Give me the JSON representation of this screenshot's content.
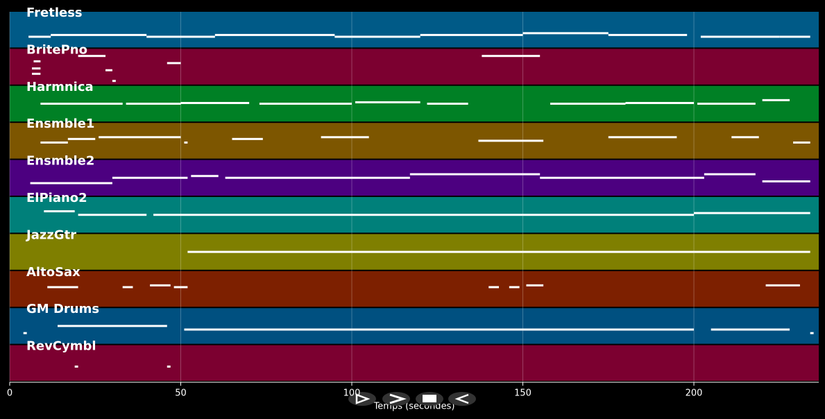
{
  "chart_data": {
    "type": "pianoroll",
    "xlabel": "Temps (secondes)",
    "xlim": [
      0,
      236.5
    ],
    "xticks": [
      0,
      50,
      100,
      150,
      200
    ],
    "grid": true,
    "series": [
      {
        "name": "Fretless",
        "color": "#005a87",
        "notes": [
          [
            5.5,
            12,
            30
          ],
          [
            12,
            40,
            35
          ],
          [
            40,
            60,
            30
          ],
          [
            60,
            95,
            35
          ],
          [
            95,
            120,
            30
          ],
          [
            120,
            150,
            35
          ],
          [
            150,
            175,
            40
          ],
          [
            175,
            198,
            35
          ],
          [
            202,
            225,
            30
          ],
          [
            225,
            234,
            30
          ]
        ]
      },
      {
        "name": "BritePno",
        "color": "#7c0030",
        "notes": [
          [
            6.5,
            9,
            30
          ],
          [
            6.5,
            9,
            45
          ],
          [
            7,
            9,
            65
          ],
          [
            20,
            28,
            80
          ],
          [
            28,
            30,
            40
          ],
          [
            30,
            31,
            10
          ],
          [
            46,
            50,
            60
          ],
          [
            138,
            155,
            80
          ]
        ]
      },
      {
        "name": "Harmnica",
        "color": "#008025",
        "notes": [
          [
            9,
            33,
            50
          ],
          [
            34,
            50,
            50
          ],
          [
            50,
            70,
            52
          ],
          [
            73,
            100,
            50
          ],
          [
            101,
            120,
            54
          ],
          [
            122,
            134,
            50
          ],
          [
            158,
            180,
            50
          ],
          [
            180,
            200,
            52
          ],
          [
            201,
            218,
            50
          ],
          [
            220,
            228,
            60
          ]
        ]
      },
      {
        "name": "Ensmble1",
        "color": "#7d5600",
        "notes": [
          [
            9,
            17,
            45
          ],
          [
            17,
            25,
            55
          ],
          [
            26,
            50,
            60
          ],
          [
            51,
            52,
            45
          ],
          [
            65,
            74,
            55
          ],
          [
            91,
            105,
            60
          ],
          [
            137,
            156,
            50
          ],
          [
            175,
            195,
            60
          ],
          [
            211,
            219,
            60
          ],
          [
            229,
            234,
            45
          ]
        ]
      },
      {
        "name": "Ensmble2",
        "color": "#4c0080",
        "notes": [
          [
            6,
            30,
            35
          ],
          [
            30,
            52,
            50
          ],
          [
            53,
            61,
            55
          ],
          [
            63,
            117,
            50
          ],
          [
            117,
            155,
            60
          ],
          [
            155,
            203,
            50
          ],
          [
            203,
            218,
            60
          ],
          [
            220,
            234,
            40
          ]
        ]
      },
      {
        "name": "ElPiano2",
        "color": "#00807a",
        "notes": [
          [
            10,
            19,
            60
          ],
          [
            20,
            40,
            50
          ],
          [
            42,
            100,
            50
          ],
          [
            100,
            150,
            50
          ],
          [
            150,
            200,
            50
          ],
          [
            200,
            234,
            55
          ]
        ]
      },
      {
        "name": "JazzGtr",
        "color": "#7f7f00",
        "notes": [
          [
            52,
            100,
            50
          ],
          [
            100,
            150,
            50
          ],
          [
            150,
            200,
            50
          ],
          [
            200,
            234,
            50
          ]
        ]
      },
      {
        "name": "AltoSax",
        "color": "#7d2000",
        "notes": [
          [
            11,
            20,
            55
          ],
          [
            33,
            36,
            55
          ],
          [
            41,
            47,
            60
          ],
          [
            48,
            52,
            55
          ],
          [
            140,
            143,
            55
          ],
          [
            146,
            149,
            55
          ],
          [
            151,
            156,
            60
          ],
          [
            221,
            231,
            60
          ]
        ]
      },
      {
        "name": "GM Drums",
        "color": "#005080",
        "notes": [
          [
            4,
            5,
            30
          ],
          [
            14,
            46,
            50
          ],
          [
            51,
            100,
            40
          ],
          [
            100,
            150,
            40
          ],
          [
            150,
            200,
            40
          ],
          [
            205,
            228,
            40
          ],
          [
            234,
            235,
            30
          ]
        ]
      },
      {
        "name": "RevCymbl",
        "color": "#7c0030",
        "notes": [
          [
            19,
            20,
            40
          ],
          [
            46,
            47,
            40
          ]
        ]
      }
    ]
  }
}
